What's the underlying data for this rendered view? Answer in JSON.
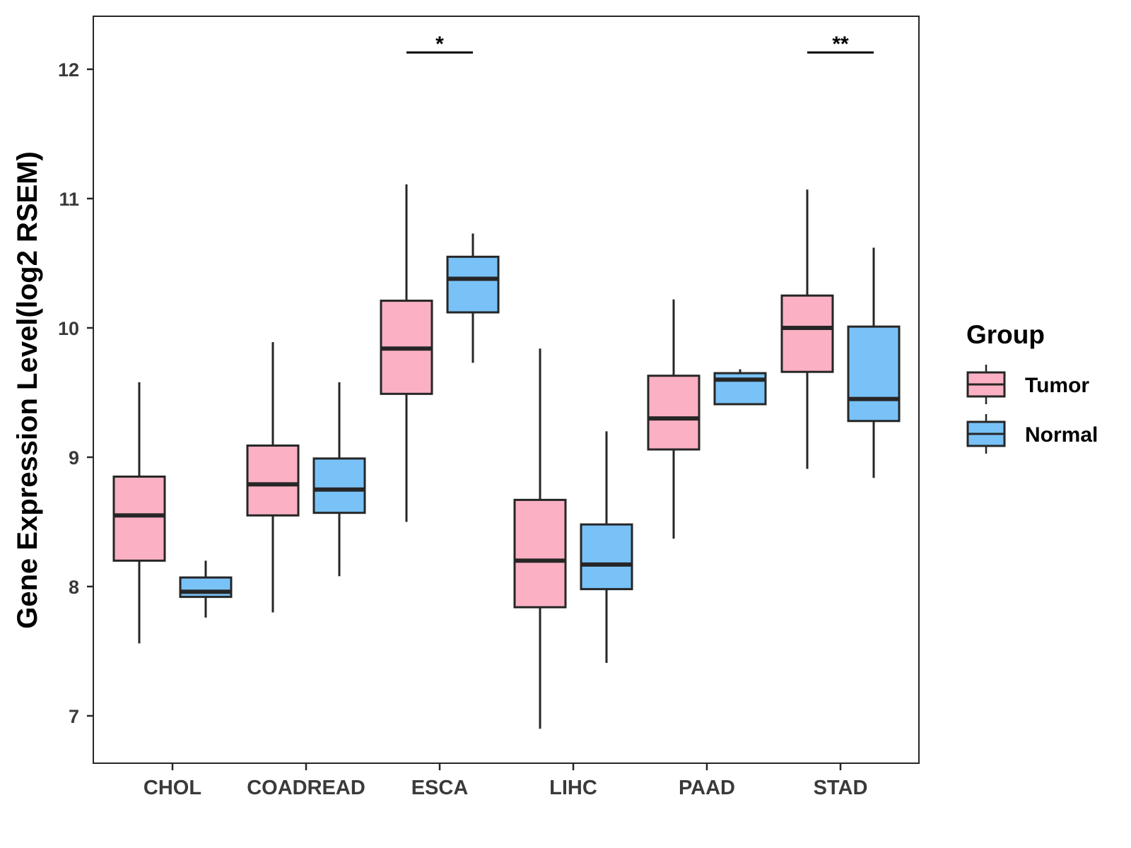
{
  "chart_data": {
    "type": "boxplot",
    "title": "",
    "xlabel": "",
    "ylabel": "Gene Expression Level(log2 RSEM)",
    "ylim": [
      6.63,
      12.4
    ],
    "yticks": [
      7,
      8,
      9,
      10,
      11,
      12
    ],
    "grid": false,
    "categories": [
      "CHOL",
      "COADREAD",
      "ESCA",
      "LIHC",
      "PAAD",
      "STAD"
    ],
    "legend": {
      "title": "Group",
      "placement": "right",
      "entries": [
        "Tumor",
        "Normal"
      ]
    },
    "series": [
      {
        "name": "Tumor",
        "color": "#fbb1c3",
        "boxes": [
          {
            "min": 7.56,
            "q1": 8.2,
            "median": 8.55,
            "q3": 8.85,
            "max": 9.58
          },
          {
            "min": 7.8,
            "q1": 8.55,
            "median": 8.79,
            "q3": 9.09,
            "max": 9.89
          },
          {
            "min": 8.5,
            "q1": 9.49,
            "median": 9.84,
            "q3": 10.21,
            "max": 11.11
          },
          {
            "min": 6.9,
            "q1": 7.84,
            "median": 8.2,
            "q3": 8.67,
            "max": 9.84
          },
          {
            "min": 8.37,
            "q1": 9.06,
            "median": 9.3,
            "q3": 9.63,
            "max": 10.22
          },
          {
            "min": 8.91,
            "q1": 9.66,
            "median": 10.0,
            "q3": 10.25,
            "max": 11.07
          }
        ]
      },
      {
        "name": "Normal",
        "color": "#79c2f7",
        "boxes": [
          {
            "min": 7.76,
            "q1": 7.92,
            "median": 7.96,
            "q3": 8.07,
            "max": 8.2
          },
          {
            "min": 8.08,
            "q1": 8.57,
            "median": 8.75,
            "q3": 8.99,
            "max": 9.58
          },
          {
            "min": 9.73,
            "q1": 10.12,
            "median": 10.38,
            "q3": 10.55,
            "max": 10.73
          },
          {
            "min": 7.41,
            "q1": 7.98,
            "median": 8.17,
            "q3": 8.48,
            "max": 9.2
          },
          {
            "min": 9.41,
            "q1": 9.41,
            "median": 9.6,
            "q3": 9.65,
            "max": 9.68
          },
          {
            "min": 8.84,
            "q1": 9.28,
            "median": 9.45,
            "q3": 10.01,
            "max": 10.62
          }
        ]
      }
    ],
    "annotations": [
      {
        "category": "ESCA",
        "label": "*",
        "y": 12.13
      },
      {
        "category": "STAD",
        "label": "**",
        "y": 12.13
      }
    ]
  }
}
